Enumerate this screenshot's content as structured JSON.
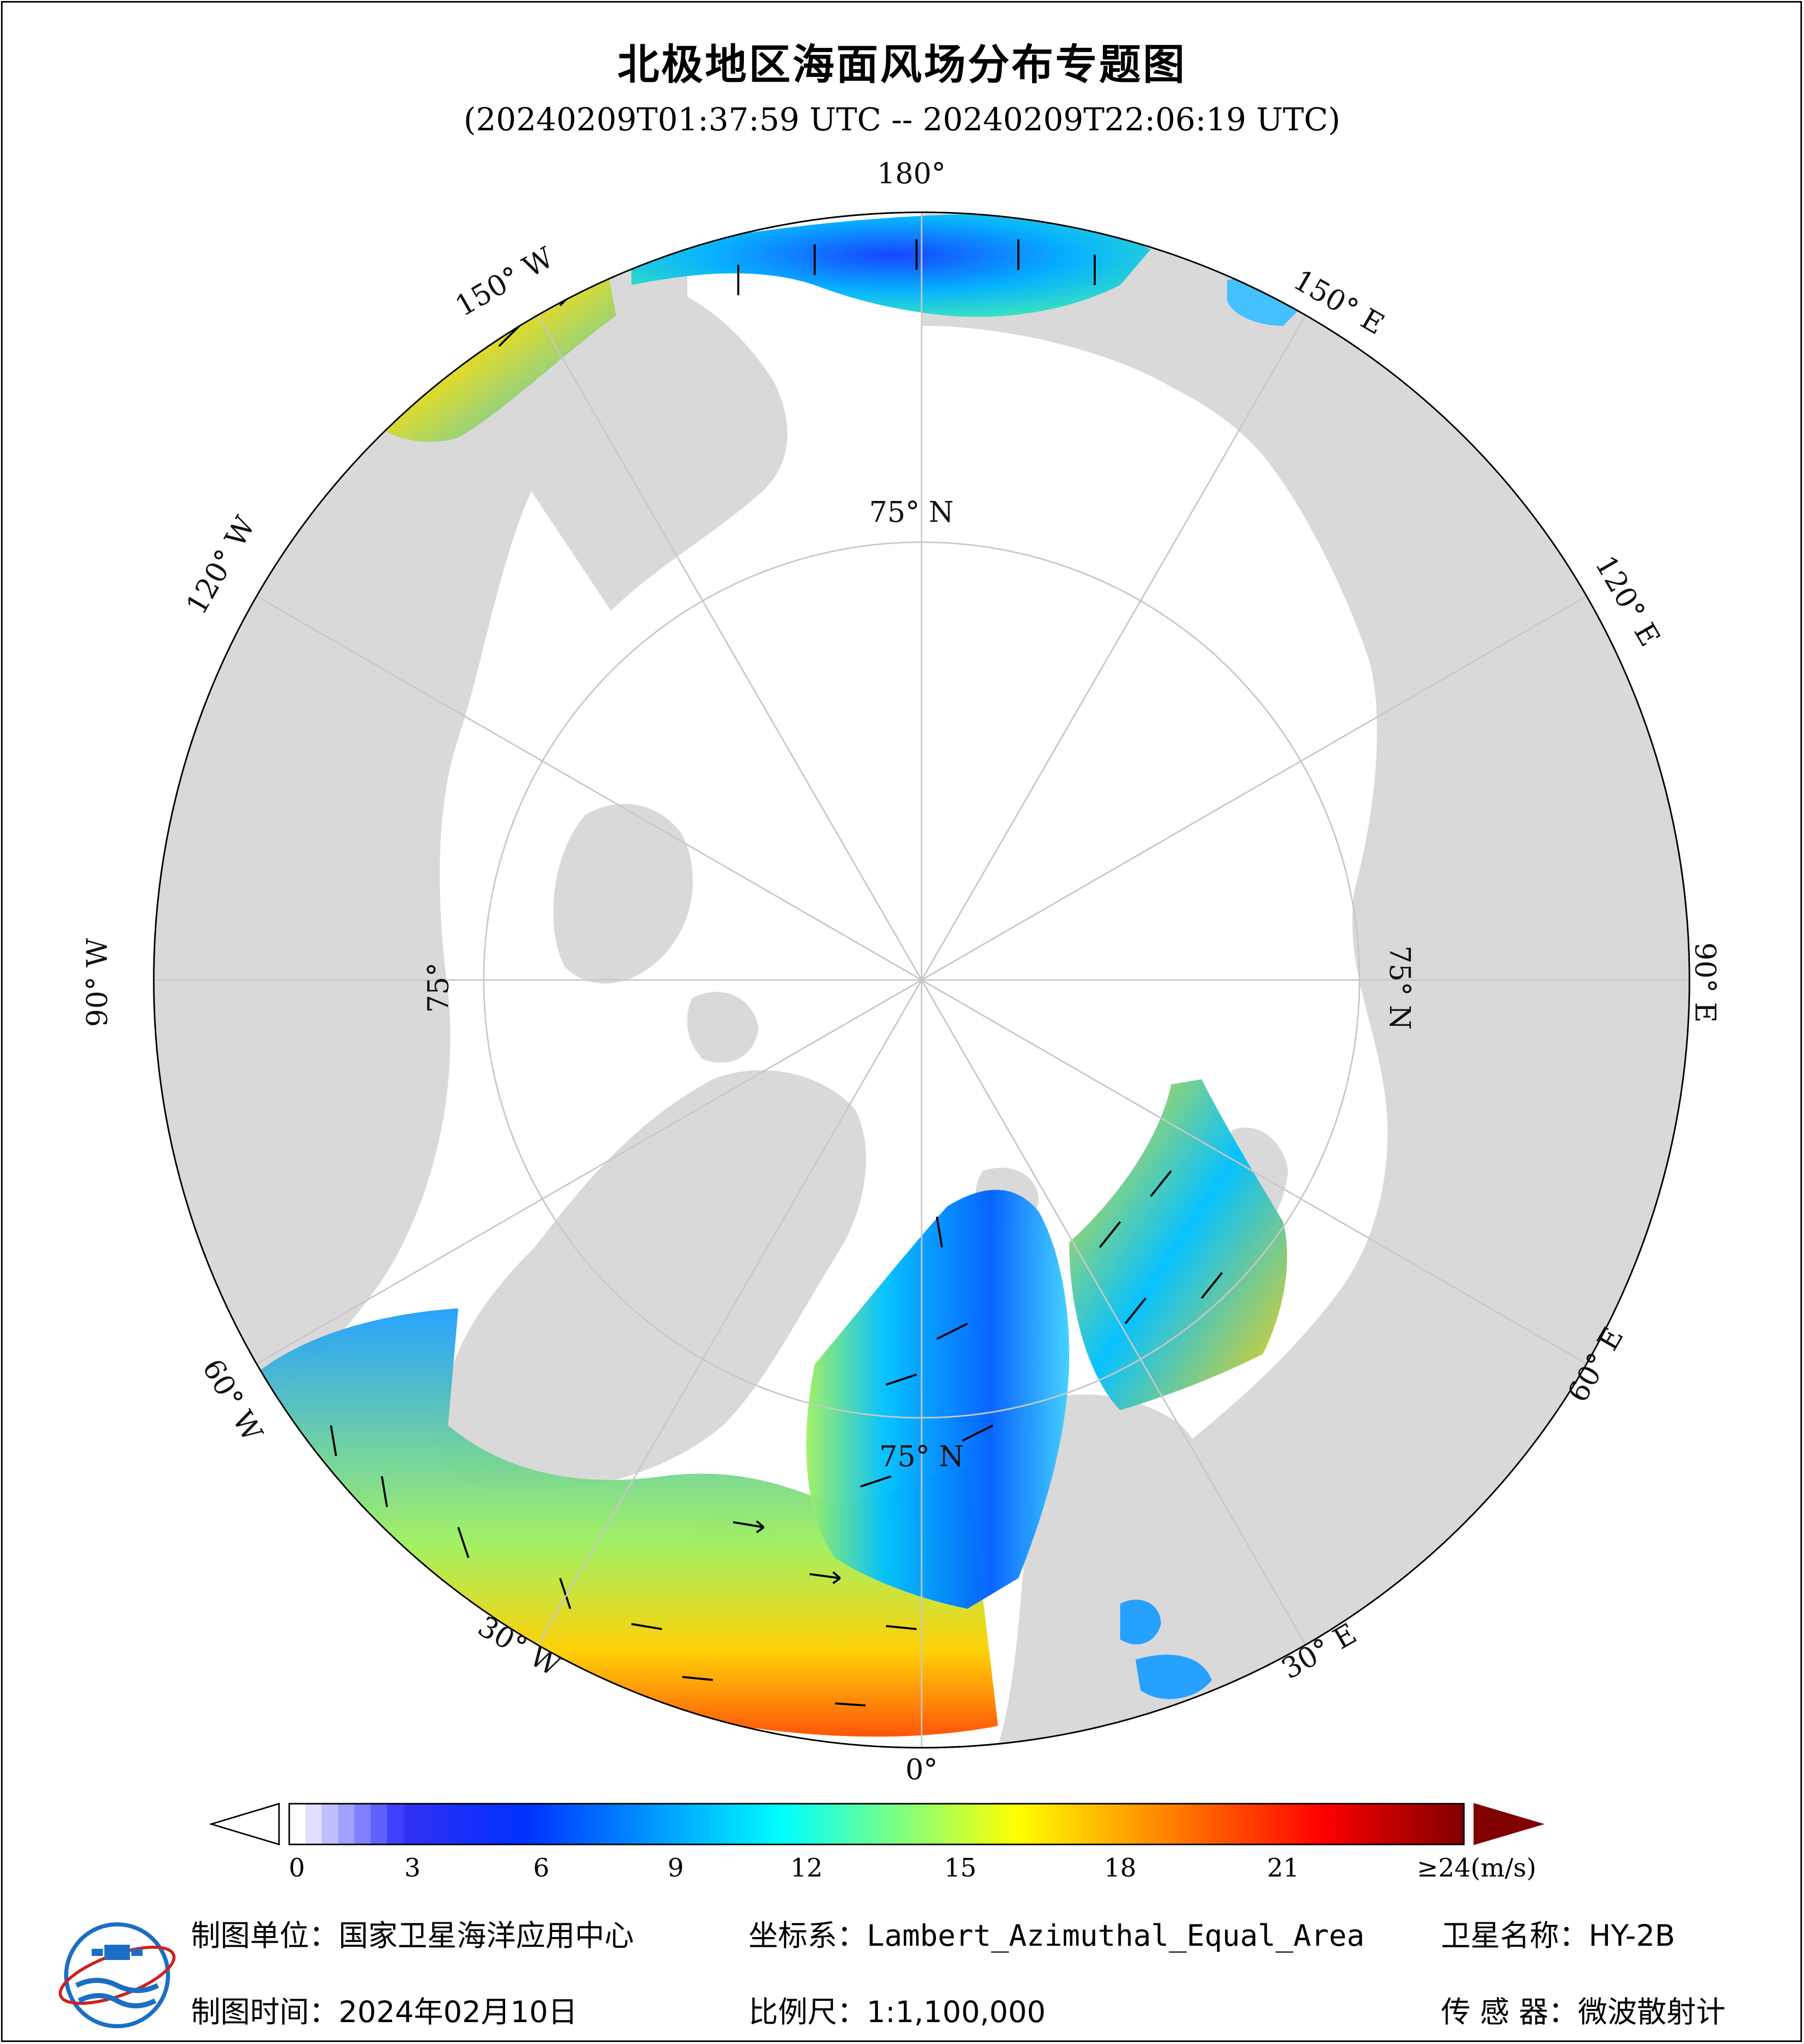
{
  "title": "北极地区海面风场分布专题图",
  "time_range": "(20240209T01:37:59 UTC -- 20240209T22:06:19 UTC)",
  "map": {
    "projection_labels": {
      "lon_180": "180°",
      "lon_150w": "150° W",
      "lon_150e": "150° E",
      "lon_120w": "120° W",
      "lon_120e": "120° E",
      "lon_90w": "90° W",
      "lon_90e": "90° E",
      "lon_60w": "60° W",
      "lon_60e": "60° E",
      "lon_30w": "30° W",
      "lon_30e": "30° E",
      "lon_0": "0°",
      "lat_75n_top": "75° N",
      "lat_75n_left": "75°",
      "lat_75n_right": "75° N",
      "lat_75n_bottom": "75° N"
    },
    "colors": {
      "land": "#d9d9d9",
      "ocean_ice": "#ffffff",
      "graticule": "#c8c8c8",
      "coast": "#000000"
    }
  },
  "colorbar": {
    "unit_label": "≥24(m/s)",
    "ticks": [
      "0",
      "3",
      "6",
      "9",
      "12",
      "15",
      "18",
      "21"
    ],
    "tick_values": [
      0,
      3,
      6,
      9,
      12,
      15,
      18,
      21
    ],
    "min": 0,
    "max": 24,
    "stops": [
      "#ffffff",
      "#d8d8ff",
      "#a0a0ff",
      "#6060ff",
      "#1010ee",
      "#0050ff",
      "#0090ff",
      "#00d0ff",
      "#40f0c0",
      "#a0f070",
      "#f0f000",
      "#ffb000",
      "#ff6000",
      "#ff0000",
      "#c00000",
      "#800000"
    ],
    "overflow_color": "#800000"
  },
  "footer": {
    "producer_key": "制图单位：",
    "producer_val": "国家卫星海洋应用中心",
    "crs_key": "坐标系：",
    "crs_val": "Lambert_Azimuthal_Equal_Area",
    "satellite_key": "卫星名称：",
    "satellite_val": "HY-2B",
    "date_key": "制图时间：",
    "date_val": "2024年02月10日",
    "scale_key": "比例尺：",
    "scale_val": "1:1,100,000",
    "sensor_key": "传 感 器：",
    "sensor_val": "微波散射计"
  },
  "logo": {
    "icon": "nsoas-logo-icon"
  }
}
